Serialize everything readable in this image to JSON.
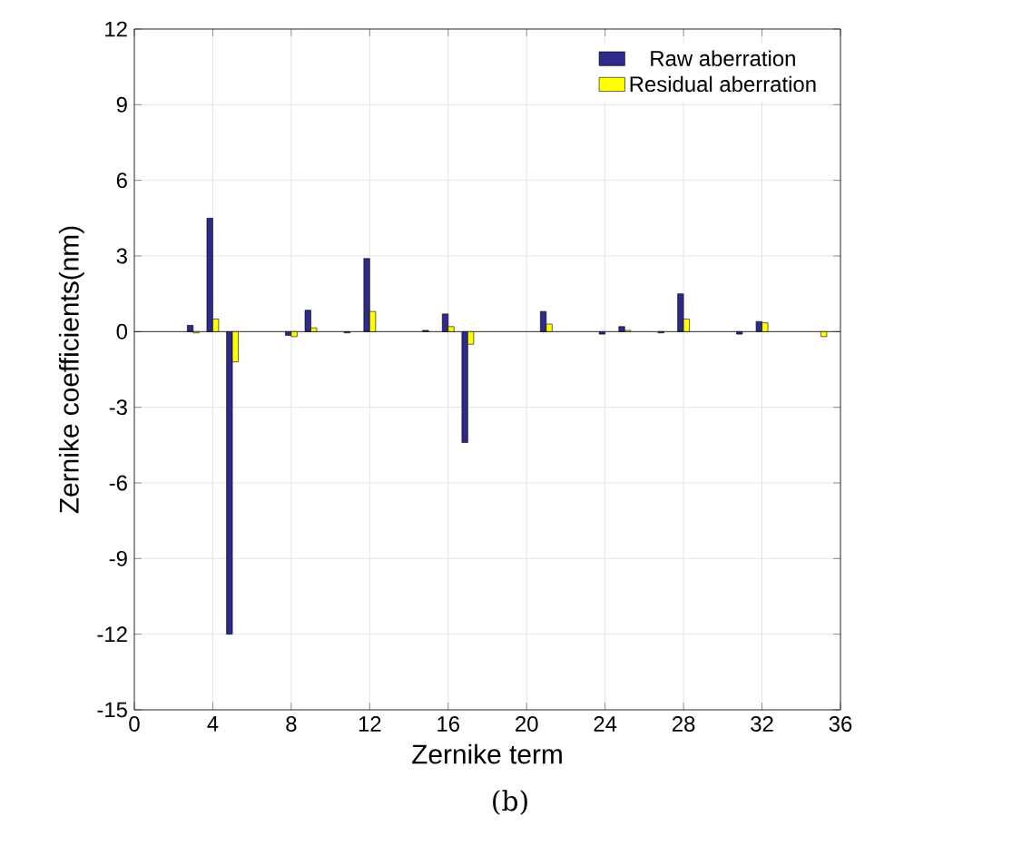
{
  "chart_data": {
    "type": "bar",
    "xlabel": "Zernike term",
    "ylabel": "Zernike coefficients(nm)",
    "annotations": [
      "(b)"
    ],
    "series": [
      {
        "name": "Raw aberration",
        "color": "#2e2a8a",
        "x": [
          3,
          4,
          5,
          8,
          9,
          11,
          12,
          15,
          16,
          17,
          21,
          24,
          25,
          27,
          28,
          31,
          32
        ],
        "values": [
          0.25,
          4.5,
          -12,
          -0.15,
          0.85,
          -0.05,
          2.9,
          0.05,
          0.7,
          -4.4,
          0.8,
          -0.1,
          0.2,
          -0.05,
          1.5,
          -0.1,
          0.4
        ]
      },
      {
        "name": "Residual aberration",
        "color": "#ffff00",
        "x": [
          3,
          4,
          5,
          8,
          9,
          12,
          16,
          17,
          21,
          25,
          28,
          32,
          35
        ],
        "values": [
          -0.05,
          0.5,
          -1.2,
          -0.2,
          0.15,
          0.8,
          0.2,
          -0.5,
          0.3,
          0.05,
          0.5,
          0.35,
          -0.2
        ]
      }
    ],
    "xlim": [
      0,
      36
    ],
    "xticks": [
      0,
      4,
      8,
      12,
      16,
      20,
      24,
      28,
      32,
      36
    ],
    "ylim": [
      -15,
      12
    ],
    "yticks": [
      -15,
      -12,
      -9,
      -6,
      -3,
      0,
      3,
      6,
      9,
      12
    ],
    "grid": true,
    "legend": "top right"
  }
}
